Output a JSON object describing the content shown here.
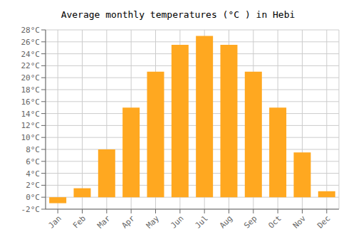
{
  "chart_data": {
    "type": "bar",
    "title": "Average monthly temperatures (°C ) in Hebi",
    "categories": [
      "Jan",
      "Feb",
      "Mar",
      "Apr",
      "May",
      "Jun",
      "Jul",
      "Aug",
      "Sep",
      "Oct",
      "Nov",
      "Dec"
    ],
    "values": [
      -1,
      1.5,
      8,
      15,
      21,
      25.5,
      27,
      25.5,
      21,
      15,
      7.5,
      1
    ],
    "color": "#FFA820",
    "ylim": [
      -2,
      28
    ],
    "yticks": [
      {
        "value": -2,
        "label": "-2°C"
      },
      {
        "value": 0,
        "label": "0°C"
      },
      {
        "value": 2,
        "label": "2°C"
      },
      {
        "value": 4,
        "label": "4°C"
      },
      {
        "value": 6,
        "label": "6°C"
      },
      {
        "value": 8,
        "label": "8°C"
      },
      {
        "value": 10,
        "label": "10°C"
      },
      {
        "value": 12,
        "label": "12°C"
      },
      {
        "value": 14,
        "label": "14°C"
      },
      {
        "value": 16,
        "label": "16°C"
      },
      {
        "value": 18,
        "label": "18°C"
      },
      {
        "value": 20,
        "label": "20°C"
      },
      {
        "value": 22,
        "label": "22°C"
      },
      {
        "value": 24,
        "label": "24°C"
      },
      {
        "value": 26,
        "label": "26°C"
      },
      {
        "value": 28,
        "label": "28°C"
      }
    ],
    "grid": true
  }
}
